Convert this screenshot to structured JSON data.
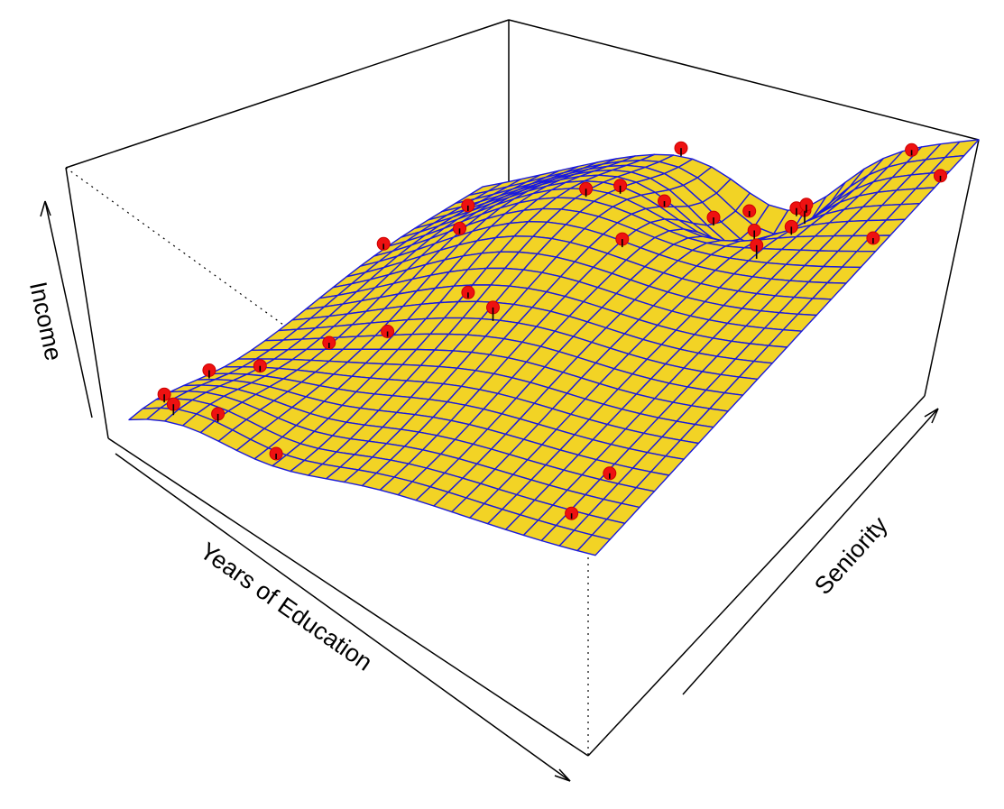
{
  "chart_data": {
    "type": "surface",
    "title": "",
    "axes": {
      "x_label": "Years of Education",
      "y_label": "Seniority",
      "z_label": "Income"
    },
    "grid": {
      "rows": 26,
      "cols": 26
    },
    "colors": {
      "surface_fill": "#f2d325",
      "mesh_line": "#1a1adc",
      "point_fill": "#ee1111",
      "point_edge": "#cc0000",
      "box": "#000000"
    },
    "points": [
      {
        "u": 0.03,
        "v": 0.06,
        "z": 0.45,
        "dz": 0.03
      },
      {
        "u": 0.08,
        "v": 0.02,
        "z": 0.42,
        "dz": 0.04
      },
      {
        "u": 0.02,
        "v": 0.2,
        "z": 0.43,
        "dz": 0.03
      },
      {
        "u": 0.16,
        "v": 0.04,
        "z": 0.42,
        "dz": 0.03
      },
      {
        "u": 0.3,
        "v": 0.02,
        "z": 0.33,
        "dz": 0.02
      },
      {
        "u": 0.09,
        "v": 0.25,
        "z": 0.55,
        "dz": 0.02
      },
      {
        "u": 0.16,
        "v": 0.35,
        "z": 0.62,
        "dz": 0.02
      },
      {
        "u": 0.26,
        "v": 0.38,
        "z": 0.62,
        "dz": 0.02
      },
      {
        "u": 0.36,
        "v": 0.47,
        "z": 0.72,
        "dz": 0.02
      },
      {
        "u": 0.45,
        "v": 0.42,
        "z": 0.68,
        "dz": 0.05
      },
      {
        "u": 0.9,
        "v": 0.06,
        "z": 0.24,
        "dz": 0.02
      },
      {
        "u": 0.9,
        "v": 0.16,
        "z": 0.24,
        "dz": 0.02
      },
      {
        "u": 0.0,
        "v": 0.72,
        "z": 1.0,
        "dz": 0.02
      },
      {
        "u": 0.1,
        "v": 0.82,
        "z": 1.08,
        "dz": 0.02
      },
      {
        "u": 0.2,
        "v": 0.66,
        "z": 0.82,
        "dz": 0.02
      },
      {
        "u": 0.4,
        "v": 0.74,
        "z": 1.08,
        "dz": 0.03
      },
      {
        "u": 0.44,
        "v": 0.78,
        "z": 1.12,
        "dz": 0.03
      },
      {
        "u": 0.55,
        "v": 0.64,
        "z": 0.85,
        "dz": 0.03
      },
      {
        "u": 0.5,
        "v": 0.82,
        "z": 1.12,
        "dz": 0.02
      },
      {
        "u": 0.54,
        "v": 0.9,
        "z": 1.15,
        "dz": 0.03
      },
      {
        "u": 0.6,
        "v": 0.93,
        "z": 1.18,
        "dz": 0.05
      },
      {
        "u": 0.66,
        "v": 0.95,
        "z": 1.15,
        "dz": 0.03
      },
      {
        "u": 0.56,
        "v": 0.97,
        "z": 1.25,
        "dz": 0.02
      },
      {
        "u": 0.74,
        "v": 0.88,
        "z": 0.94,
        "dz": 0.05
      },
      {
        "u": 0.78,
        "v": 0.7,
        "z": 0.68,
        "dz": 0.05
      },
      {
        "u": 0.4,
        "v": 1.0,
        "z": 1.2,
        "dz": 0.03
      },
      {
        "u": 0.64,
        "v": 0.99,
        "z": 1.15,
        "dz": 0.03
      },
      {
        "u": 0.66,
        "v": 0.99,
        "z": 1.17,
        "dz": 0.03
      },
      {
        "u": 0.88,
        "v": 0.98,
        "z": 0.88,
        "dz": 0.02
      },
      {
        "u": 1.0,
        "v": 0.9,
        "z": 0.75,
        "dz": 0.02
      },
      {
        "u": 0.98,
        "v": 0.75,
        "z": 0.55,
        "dz": 0.02
      }
    ]
  }
}
